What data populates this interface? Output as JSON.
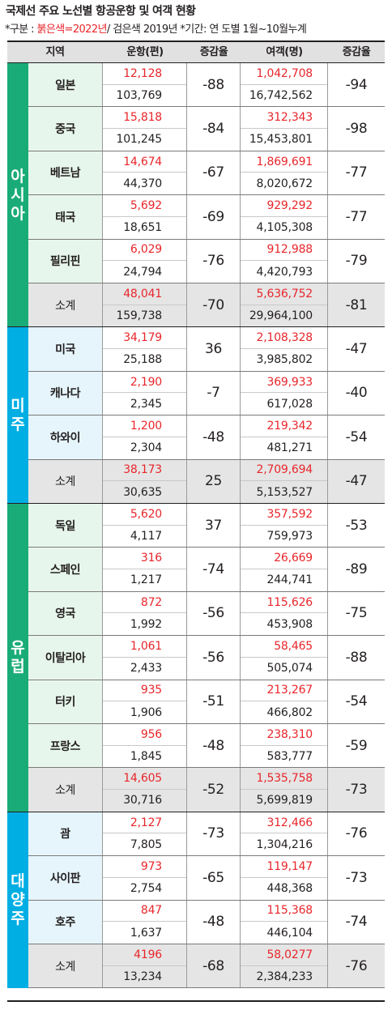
{
  "title": "국제선 주요 노선별 항공운항 및 여객 현황",
  "subtitle": {
    "prefix": "*구분 : ",
    "red_label": "붉은색=2022년",
    "rest": "/ 검은색 2019년 *기간: 연 도별 1월~10월누계"
  },
  "headers": {
    "region": "지역",
    "flights": "운항(편)",
    "flights_change": "증감율",
    "passengers": "여객(명)",
    "passengers_change": "증감율"
  },
  "groups": [
    {
      "name": "아시아",
      "chars": [
        "아",
        "시",
        "아"
      ],
      "color": "#1aac78",
      "rows": [
        {
          "city": "일본",
          "f2022": "12,128",
          "f2019": "103,769",
          "fchg": "-88",
          "p2022": "1,042,708",
          "p2019": "16,742,562",
          "pchg": "-94"
        },
        {
          "city": "중국",
          "f2022": "15,818",
          "f2019": "101,245",
          "fchg": "-84",
          "p2022": "312,343",
          "p2019": "15,453,801",
          "pchg": "-98"
        },
        {
          "city": "베트남",
          "f2022": "14,674",
          "f2019": "44,370",
          "fchg": "-67",
          "p2022": "1,869,691",
          "p2019": "8,020,672",
          "pchg": "-77"
        },
        {
          "city": "태국",
          "f2022": "5,692",
          "f2019": "18,651",
          "fchg": "-69",
          "p2022": "929,292",
          "p2019": "4,105,308",
          "pchg": "-77"
        },
        {
          "city": "필리핀",
          "f2022": "6,029",
          "f2019": "24,794",
          "fchg": "-76",
          "p2022": "912,988",
          "p2019": "4,420,793",
          "pchg": "-79"
        },
        {
          "city": "소계",
          "f2022": "48,041",
          "f2019": "159,738",
          "fchg": "-70",
          "p2022": "5,636,752",
          "p2019": "29,964,100",
          "pchg": "-81",
          "subtotal": true
        }
      ]
    },
    {
      "name": "미주",
      "chars": [
        "미",
        "주"
      ],
      "color": "#00aee3",
      "rows": [
        {
          "city": "미국",
          "f2022": "34,179",
          "f2019": "25,188",
          "fchg": "36",
          "p2022": "2,108,328",
          "p2019": "3,985,802",
          "pchg": "-47"
        },
        {
          "city": "캐나다",
          "f2022": "2,190",
          "f2019": "2,345",
          "fchg": "-7",
          "p2022": "369,933",
          "p2019": "617,028",
          "pchg": "-40"
        },
        {
          "city": "하와이",
          "f2022": "1,200",
          "f2019": "2,304",
          "fchg": "-48",
          "p2022": "219,342",
          "p2019": "481,271",
          "pchg": "-54"
        },
        {
          "city": "소계",
          "f2022": "38,173",
          "f2019": "30,635",
          "fchg": "25",
          "p2022": "2,709,694",
          "p2019": "5,153,527",
          "pchg": "-47",
          "subtotal": true
        }
      ]
    },
    {
      "name": "유럽",
      "chars": [
        "유",
        "럽"
      ],
      "color": "#1aac78",
      "rows": [
        {
          "city": "독일",
          "f2022": "5,620",
          "f2019": "4,117",
          "fchg": "37",
          "p2022": "357,592",
          "p2019": "759,973",
          "pchg": "-53"
        },
        {
          "city": "스페인",
          "f2022": "316",
          "f2019": "1,217",
          "fchg": "-74",
          "p2022": "26,669",
          "p2019": "244,741",
          "pchg": "-89"
        },
        {
          "city": "영국",
          "f2022": "872",
          "f2019": "1,992",
          "fchg": "-56",
          "p2022": "115,626",
          "p2019": "453,908",
          "pchg": "-75"
        },
        {
          "city": "이탈리아",
          "f2022": "1,061",
          "f2019": "2,433",
          "fchg": "-56",
          "p2022": "58,465",
          "p2019": "505,074",
          "pchg": "-88"
        },
        {
          "city": "터키",
          "f2022": "935",
          "f2019": "1,906",
          "fchg": "-51",
          "p2022": "213,267",
          "p2019": "466,802",
          "pchg": "-54"
        },
        {
          "city": "프랑스",
          "f2022": "956",
          "f2019": "1,845",
          "fchg": "-48",
          "p2022": "238,310",
          "p2019": "583,777",
          "pchg": "-59"
        },
        {
          "city": "소계",
          "f2022": "14,605",
          "f2019": "30,716",
          "fchg": "-52",
          "p2022": "1,535,758",
          "p2019": "5,699,819",
          "pchg": "-73",
          "subtotal": true
        }
      ]
    },
    {
      "name": "대양주",
      "chars": [
        "대",
        "양",
        "주"
      ],
      "color": "#00aee3",
      "rows": [
        {
          "city": "괌",
          "f2022": "2,127",
          "f2019": "7,805",
          "fchg": "-73",
          "p2022": "312,466",
          "p2019": "1,304,216",
          "pchg": "-76"
        },
        {
          "city": "사이판",
          "f2022": "973",
          "f2019": "2,754",
          "fchg": "-65",
          "p2022": "119,147",
          "p2019": "448,368",
          "pchg": "-73"
        },
        {
          "city": "호주",
          "f2022": "847",
          "f2019": "1,637",
          "fchg": "-48",
          "p2022": "115,368",
          "p2019": "446,104",
          "pchg": "-74"
        },
        {
          "city": "소계",
          "f2022": "4196",
          "f2019": "13,234",
          "fchg": "-68",
          "p2022": "58,0277",
          "p2019": "2,384,233",
          "pchg": "-76",
          "subtotal": true
        }
      ]
    }
  ]
}
